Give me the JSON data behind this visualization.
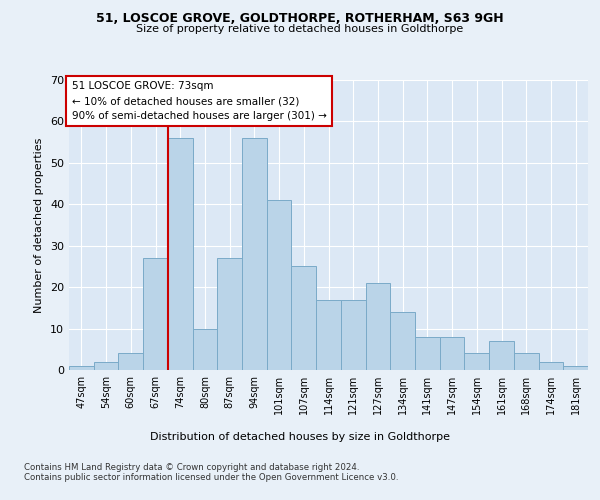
{
  "title1": "51, LOSCOE GROVE, GOLDTHORPE, ROTHERHAM, S63 9GH",
  "title2": "Size of property relative to detached houses in Goldthorpe",
  "xlabel": "Distribution of detached houses by size in Goldthorpe",
  "ylabel": "Number of detached properties",
  "categories": [
    "47sqm",
    "54sqm",
    "60sqm",
    "67sqm",
    "74sqm",
    "80sqm",
    "87sqm",
    "94sqm",
    "101sqm",
    "107sqm",
    "114sqm",
    "121sqm",
    "127sqm",
    "134sqm",
    "141sqm",
    "147sqm",
    "154sqm",
    "161sqm",
    "168sqm",
    "174sqm",
    "181sqm"
  ],
  "values": [
    1,
    2,
    4,
    27,
    56,
    10,
    27,
    56,
    41,
    25,
    17,
    17,
    21,
    14,
    8,
    8,
    4,
    7,
    4,
    2,
    1
  ],
  "bar_color": "#bad4e8",
  "bar_edge_color": "#7aaac8",
  "marker_line_color": "#cc0000",
  "annotation_line1": "51 LOSCOE GROVE: 73sqm",
  "annotation_line2": "← 10% of detached houses are smaller (32)",
  "annotation_line3": "90% of semi-detached houses are larger (301) →",
  "annotation_box_color": "#cc0000",
  "ylim": [
    0,
    70
  ],
  "yticks": [
    0,
    10,
    20,
    30,
    40,
    50,
    60,
    70
  ],
  "footer": "Contains HM Land Registry data © Crown copyright and database right 2024.\nContains public sector information licensed under the Open Government Licence v3.0.",
  "bg_color": "#e8f0f8",
  "plot_bg_color": "#dce8f5"
}
